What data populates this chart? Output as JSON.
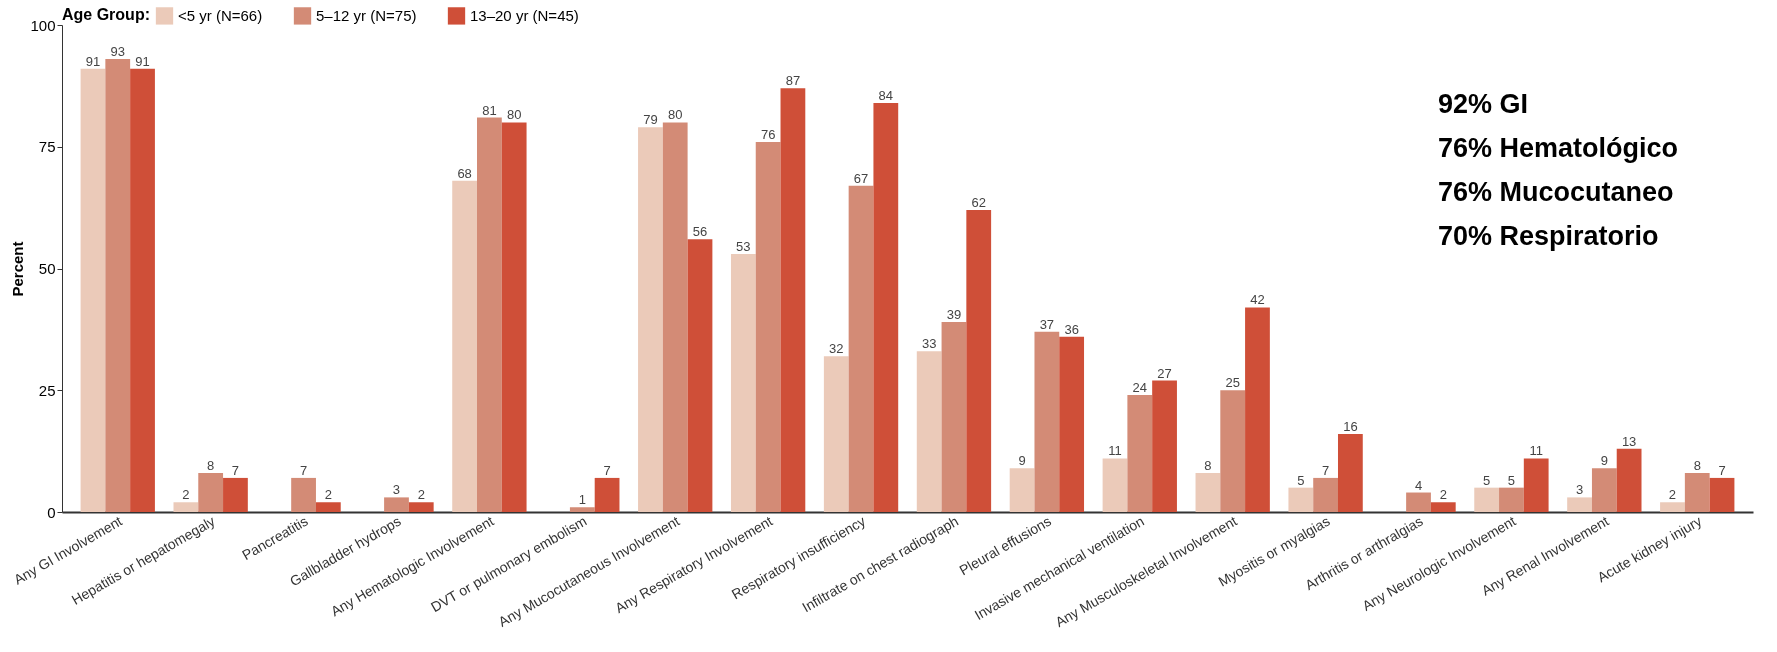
{
  "chart_data": {
    "type": "bar",
    "ylabel": "Percent",
    "legend_title": "Age Group:",
    "legend": "top",
    "grid": false,
    "data_labels": true,
    "categories": [
      "Any GI Involvement",
      "Hepatitis or hepatomegaly",
      "Pancreatitis",
      "Gallbladder hydrops",
      "Any Hematologic Involvement",
      "DVT or pulmonary embolism",
      "Any Mucocutaneous Involvement",
      "Any Respiratory Involvement",
      "Respiratory insufficiency",
      "Infiltrate on chest radiograph",
      "Pleural effusions",
      "Invasive mechanical ventilation",
      "Any Musculoskeletal Involvement",
      "Myositis or myalgias",
      "Arthritis or arthralgias",
      "Any Neurologic Involvement",
      "Any Renal Involvement",
      "Acute kidney injury"
    ],
    "series": [
      {
        "name": "<5 yr (N=66)",
        "color": "#ebcab9",
        "values": [
          91,
          2,
          null,
          null,
          68,
          null,
          79,
          53,
          32,
          33,
          9,
          11,
          8,
          5,
          null,
          5,
          3,
          2
        ]
      },
      {
        "name": "5–12 yr (N=75)",
        "color": "#d38b76",
        "values": [
          93,
          8,
          7,
          3,
          81,
          1,
          80,
          76,
          67,
          39,
          37,
          24,
          25,
          7,
          4,
          5,
          9,
          8
        ]
      },
      {
        "name": "13–20 yr (N=45)",
        "color": "#cf4f38",
        "values": [
          91,
          7,
          2,
          2,
          80,
          7,
          56,
          87,
          84,
          62,
          36,
          27,
          42,
          16,
          2,
          11,
          13,
          7
        ]
      }
    ],
    "ylim": [
      0,
      100
    ],
    "yticks": [
      0,
      25,
      50,
      75,
      100
    ],
    "annotations": [
      "92% GI",
      "76% Hematológico",
      "76% Mucocutaneo",
      "70% Respiratorio"
    ]
  }
}
